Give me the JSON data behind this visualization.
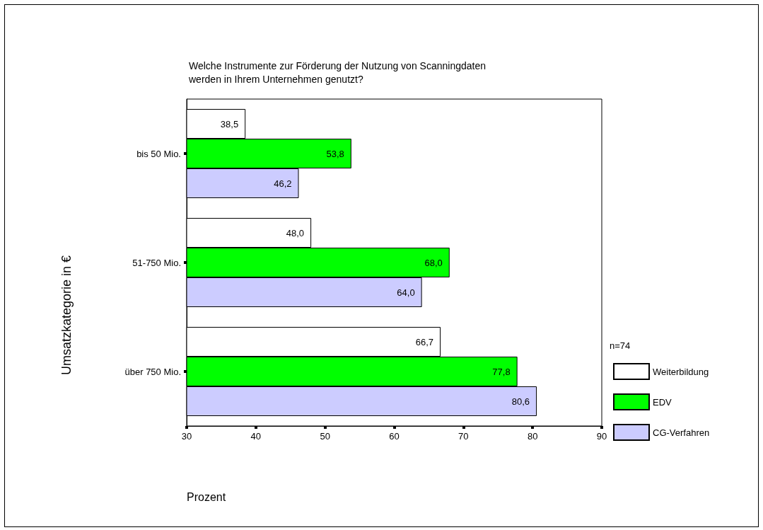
{
  "chart_data": {
    "type": "bar",
    "orientation": "horizontal",
    "title": "Welche Instrumente zur Förderung der Nutzung von Scanningdaten\nwerden in Ihrem Unternehmen genutzt?",
    "xlabel": "Prozent",
    "ylabel": "Umsatzkategorie in €",
    "legend_title": "n=74",
    "categories": [
      "bis 50 Mio.",
      "51-750 Mio.",
      "über 750 Mio."
    ],
    "series": [
      {
        "name": "Weiterbildung",
        "color": "#ffffff",
        "values": [
          38.5,
          48.0,
          66.7
        ],
        "value_labels": [
          "38,5",
          "48,0",
          "66,7"
        ]
      },
      {
        "name": "EDV",
        "color": "#00ff00",
        "values": [
          53.8,
          68.0,
          77.8
        ],
        "value_labels": [
          "53,8",
          "68,0",
          "77,8"
        ]
      },
      {
        "name": "CG-Verfahren",
        "color": "#ccccff",
        "values": [
          46.2,
          64.0,
          80.6
        ],
        "value_labels": [
          "46,2",
          "64,0",
          "80,6"
        ]
      }
    ],
    "xlim": [
      30,
      90
    ],
    "xticks": [
      30,
      40,
      50,
      60,
      70,
      80,
      90
    ],
    "grid": false,
    "legend": "right"
  }
}
